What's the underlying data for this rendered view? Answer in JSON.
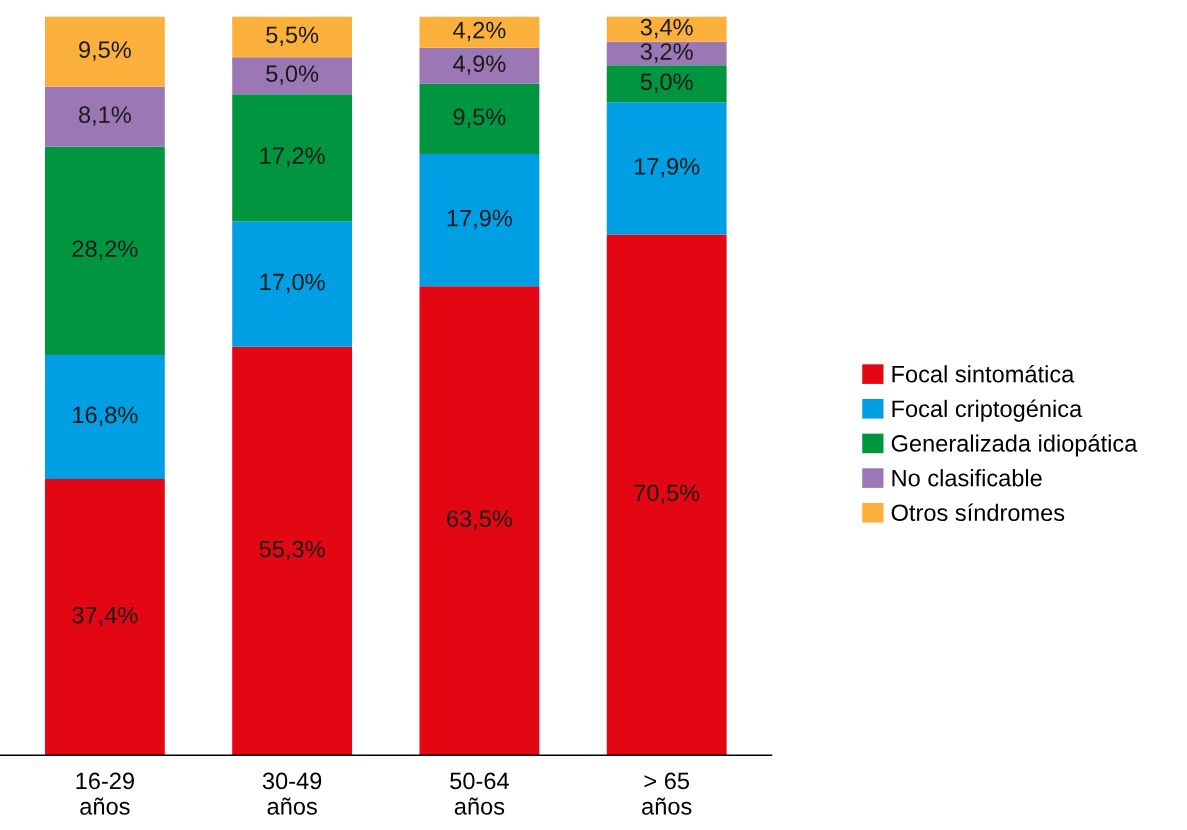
{
  "chart_data": {
    "type": "bar",
    "stacked": true,
    "categories": [
      "16-29\naños",
      "30-49\naños",
      "50-64\naños",
      "> 65\naños"
    ],
    "ylim": [
      0,
      100
    ],
    "tick_labels": "x",
    "legend": "right",
    "grid": false,
    "series": [
      {
        "name": "Focal sintomática",
        "color": "#e30613",
        "values": [
          37.4,
          55.3,
          63.5,
          70.5
        ],
        "value_labels": [
          "37,4%",
          "55,3%",
          "63,5%",
          "70,5%"
        ]
      },
      {
        "name": "Focal criptogénica",
        "color": "#009fe3",
        "values": [
          16.8,
          17.0,
          17.9,
          17.9
        ],
        "value_labels": [
          "16,8%",
          "17,0%",
          "17,9%",
          "17,9%"
        ]
      },
      {
        "name": "Generalizada idiopática",
        "color": "#009640",
        "values": [
          28.2,
          17.2,
          9.5,
          5.0
        ],
        "value_labels": [
          "28,2%",
          "17,2%",
          "9,5%",
          "5,0%"
        ]
      },
      {
        "name": "No clasificable",
        "color": "#9b78b5",
        "values": [
          8.1,
          5.0,
          4.9,
          3.2
        ],
        "value_labels": [
          "8,1%",
          "5,0%",
          "4,9%",
          "3,2%"
        ]
      },
      {
        "name": "Otros síndromes",
        "color": "#fbb03b",
        "values": [
          9.5,
          5.5,
          4.2,
          3.4
        ],
        "value_labels": [
          "9,5%",
          "5,5%",
          "4,2%",
          "3,4%"
        ]
      }
    ]
  }
}
